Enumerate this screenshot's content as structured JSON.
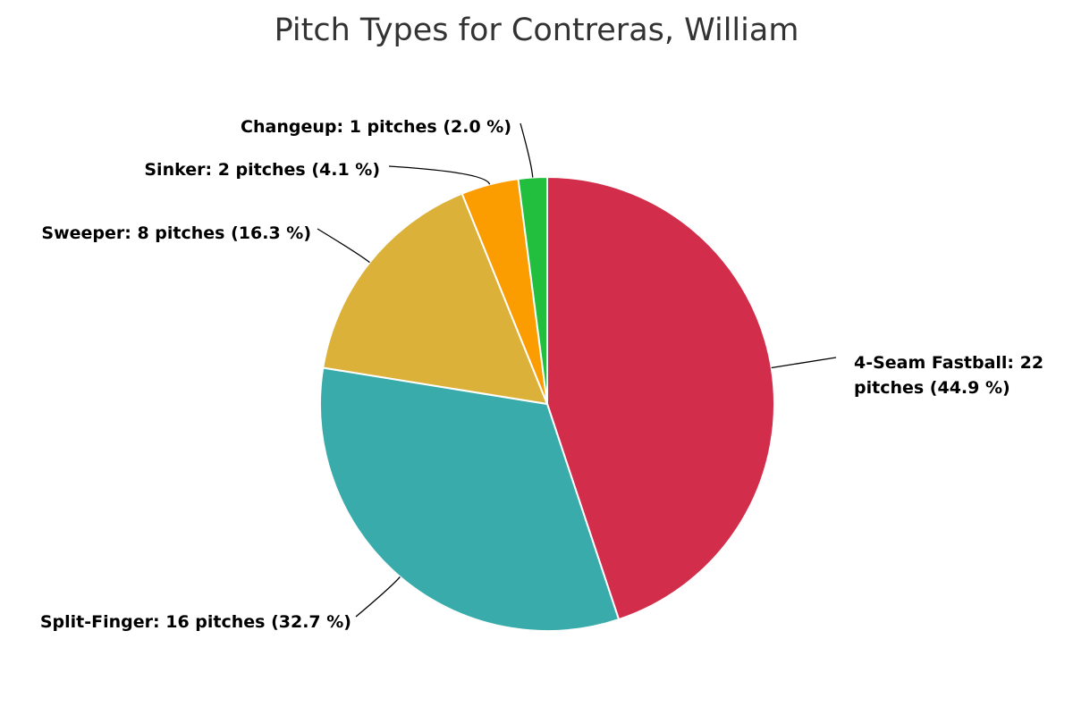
{
  "chart_data": {
    "type": "pie",
    "title": "Pitch Types for Contreras, William",
    "values": [
      22,
      16,
      8,
      2,
      1
    ],
    "value_labels": [
      "4-Seam Fastball: 22 pitches (44.9 %)",
      "Split-Finger: 16 pitches (32.7 %)",
      "Sweeper: 8 pitches (16.3 %)",
      "Sinker: 2 pitches (4.1 %)",
      "Changeup: 1 pitches (2.0 %)"
    ],
    "colors": [
      "#d22d4b",
      "#3aabab",
      "#dcb139",
      "#fb9d00",
      "#21bf3d"
    ]
  }
}
